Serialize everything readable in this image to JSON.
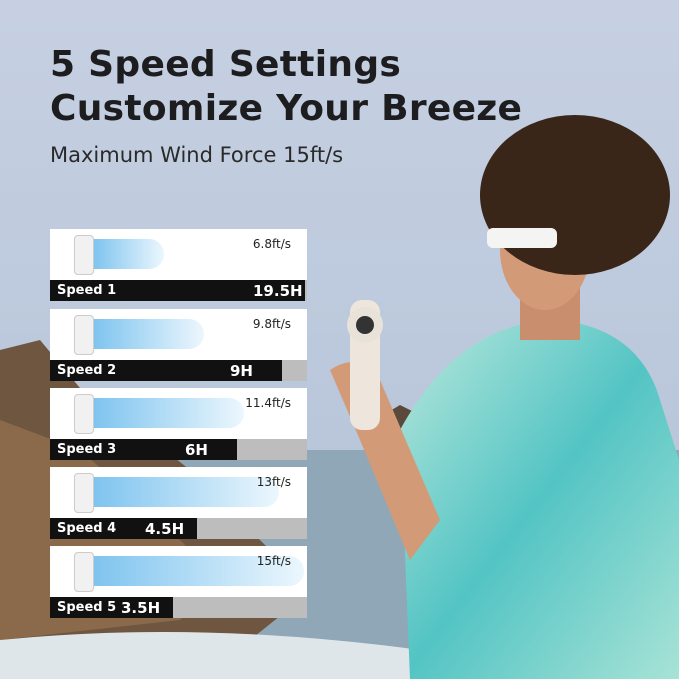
{
  "header": {
    "title_line1": "5 Speed Settings",
    "title_line2": "Customize Your Breeze",
    "subtitle": "Maximum Wind Force 15ft/s"
  },
  "speeds": [
    {
      "label": "Speed 1",
      "wind": "6.8ft/s",
      "runtime": "19.5H"
    },
    {
      "label": "Speed 2",
      "wind": "9.8ft/s",
      "runtime": "9H"
    },
    {
      "label": "Speed 3",
      "wind": "11.4ft/s",
      "runtime": "6H"
    },
    {
      "label": "Speed 4",
      "wind": "13ft/s",
      "runtime": "4.5H"
    },
    {
      "label": "Speed 5",
      "wind": "15ft/s",
      "runtime": "3.5H"
    }
  ]
}
